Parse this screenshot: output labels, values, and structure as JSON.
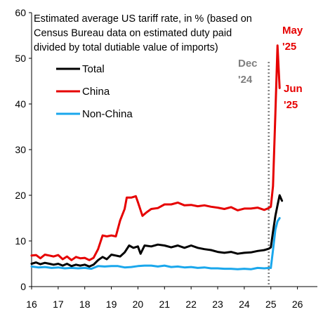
{
  "chart_data": {
    "type": "line",
    "title_lines": [
      "Estimated average US tariff rate, in % (based on",
      "Census Bureau data on estimated duty paid",
      "divided by total dutiable value of imports)"
    ],
    "xlabel": "",
    "ylabel": "",
    "xlim": [
      2016,
      2026.75
    ],
    "ylim": [
      0,
      60
    ],
    "x_ticks": [
      16,
      17,
      18,
      19,
      20,
      21,
      22,
      23,
      24,
      25,
      26
    ],
    "y_ticks": [
      0,
      10,
      20,
      30,
      40,
      50,
      60
    ],
    "grid": false,
    "legend_position": "top-left",
    "series": [
      {
        "name": "Total",
        "color": "#000000",
        "points": [
          [
            2016.0,
            5.0
          ],
          [
            2016.17,
            5.3
          ],
          [
            2016.33,
            4.9
          ],
          [
            2016.5,
            5.2
          ],
          [
            2016.67,
            5.0
          ],
          [
            2016.83,
            4.8
          ],
          [
            2017.0,
            5.0
          ],
          [
            2017.17,
            4.6
          ],
          [
            2017.33,
            5.0
          ],
          [
            2017.5,
            4.5
          ],
          [
            2017.67,
            4.8
          ],
          [
            2017.83,
            4.6
          ],
          [
            2018.0,
            4.8
          ],
          [
            2018.17,
            4.4
          ],
          [
            2018.33,
            4.8
          ],
          [
            2018.5,
            5.8
          ],
          [
            2018.67,
            6.5
          ],
          [
            2018.83,
            6.0
          ],
          [
            2019.0,
            7.0
          ],
          [
            2019.17,
            6.8
          ],
          [
            2019.33,
            6.6
          ],
          [
            2019.5,
            7.5
          ],
          [
            2019.67,
            9.0
          ],
          [
            2019.83,
            8.5
          ],
          [
            2020.0,
            8.8
          ],
          [
            2020.1,
            7.2
          ],
          [
            2020.25,
            9.0
          ],
          [
            2020.5,
            8.8
          ],
          [
            2020.75,
            9.2
          ],
          [
            2021.0,
            9.0
          ],
          [
            2021.25,
            8.6
          ],
          [
            2021.5,
            9.0
          ],
          [
            2021.75,
            8.5
          ],
          [
            2022.0,
            9.0
          ],
          [
            2022.25,
            8.5
          ],
          [
            2022.5,
            8.2
          ],
          [
            2022.75,
            8.0
          ],
          [
            2023.0,
            7.6
          ],
          [
            2023.25,
            7.4
          ],
          [
            2023.5,
            7.6
          ],
          [
            2023.75,
            7.2
          ],
          [
            2024.0,
            7.4
          ],
          [
            2024.25,
            7.5
          ],
          [
            2024.5,
            7.8
          ],
          [
            2024.75,
            8.0
          ],
          [
            2024.92,
            8.3
          ],
          [
            2025.0,
            8.6
          ],
          [
            2025.08,
            12.0
          ],
          [
            2025.17,
            15.5
          ],
          [
            2025.25,
            17.8
          ],
          [
            2025.33,
            20.0
          ],
          [
            2025.42,
            18.8
          ]
        ]
      },
      {
        "name": "China",
        "color": "#e60000",
        "points": [
          [
            2016.0,
            6.8
          ],
          [
            2016.17,
            6.9
          ],
          [
            2016.33,
            6.2
          ],
          [
            2016.5,
            7.0
          ],
          [
            2016.67,
            6.8
          ],
          [
            2016.83,
            6.6
          ],
          [
            2017.0,
            6.9
          ],
          [
            2017.17,
            6.0
          ],
          [
            2017.33,
            6.6
          ],
          [
            2017.5,
            5.8
          ],
          [
            2017.67,
            6.5
          ],
          [
            2017.83,
            6.2
          ],
          [
            2018.0,
            6.3
          ],
          [
            2018.17,
            5.8
          ],
          [
            2018.33,
            6.3
          ],
          [
            2018.5,
            8.2
          ],
          [
            2018.67,
            11.2
          ],
          [
            2018.83,
            11.0
          ],
          [
            2019.0,
            11.2
          ],
          [
            2019.17,
            11.0
          ],
          [
            2019.33,
            14.5
          ],
          [
            2019.5,
            17.0
          ],
          [
            2019.58,
            19.5
          ],
          [
            2019.75,
            19.5
          ],
          [
            2019.92,
            19.8
          ],
          [
            2020.0,
            18.5
          ],
          [
            2020.17,
            15.5
          ],
          [
            2020.33,
            16.3
          ],
          [
            2020.5,
            17.0
          ],
          [
            2020.75,
            17.2
          ],
          [
            2021.0,
            18.0
          ],
          [
            2021.25,
            18.0
          ],
          [
            2021.5,
            18.4
          ],
          [
            2021.75,
            17.8
          ],
          [
            2022.0,
            17.9
          ],
          [
            2022.25,
            17.6
          ],
          [
            2022.5,
            17.8
          ],
          [
            2022.75,
            17.5
          ],
          [
            2023.0,
            17.3
          ],
          [
            2023.25,
            17.0
          ],
          [
            2023.5,
            17.4
          ],
          [
            2023.75,
            16.7
          ],
          [
            2024.0,
            17.1
          ],
          [
            2024.25,
            17.1
          ],
          [
            2024.5,
            17.3
          ],
          [
            2024.75,
            16.8
          ],
          [
            2024.92,
            17.2
          ],
          [
            2025.0,
            17.5
          ],
          [
            2025.08,
            22.0
          ],
          [
            2025.17,
            38.0
          ],
          [
            2025.25,
            52.8
          ],
          [
            2025.33,
            43.5
          ]
        ]
      },
      {
        "name": "Non-China",
        "color": "#1aa7ec",
        "points": [
          [
            2016.0,
            4.4
          ],
          [
            2016.25,
            4.2
          ],
          [
            2016.5,
            4.3
          ],
          [
            2016.75,
            4.1
          ],
          [
            2017.0,
            4.2
          ],
          [
            2017.25,
            4.0
          ],
          [
            2017.5,
            4.1
          ],
          [
            2017.75,
            4.0
          ],
          [
            2018.0,
            4.1
          ],
          [
            2018.25,
            3.9
          ],
          [
            2018.5,
            4.5
          ],
          [
            2018.75,
            4.4
          ],
          [
            2019.0,
            4.5
          ],
          [
            2019.25,
            4.5
          ],
          [
            2019.5,
            4.2
          ],
          [
            2019.75,
            4.3
          ],
          [
            2020.0,
            4.5
          ],
          [
            2020.25,
            4.6
          ],
          [
            2020.5,
            4.6
          ],
          [
            2020.75,
            4.4
          ],
          [
            2021.0,
            4.6
          ],
          [
            2021.25,
            4.3
          ],
          [
            2021.5,
            4.4
          ],
          [
            2021.75,
            4.2
          ],
          [
            2022.0,
            4.3
          ],
          [
            2022.25,
            4.1
          ],
          [
            2022.5,
            4.2
          ],
          [
            2022.75,
            4.0
          ],
          [
            2023.0,
            4.0
          ],
          [
            2023.25,
            3.9
          ],
          [
            2023.5,
            3.9
          ],
          [
            2023.75,
            3.8
          ],
          [
            2024.0,
            3.9
          ],
          [
            2024.25,
            3.8
          ],
          [
            2024.5,
            4.1
          ],
          [
            2024.75,
            4.0
          ],
          [
            2024.92,
            4.1
          ],
          [
            2025.0,
            4.1
          ],
          [
            2025.08,
            8.0
          ],
          [
            2025.17,
            12.5
          ],
          [
            2025.25,
            14.3
          ],
          [
            2025.33,
            15.0
          ]
        ]
      }
    ],
    "reference_line": {
      "x": 2024.92,
      "style": "dotted",
      "color": "#7f7f7f",
      "label_lines": [
        "Dec",
        "'24"
      ]
    },
    "annotations": [
      {
        "text_lines": [
          "May",
          "'25"
        ],
        "color": "#e60000"
      },
      {
        "text_lines": [
          "Jun",
          "'25"
        ],
        "color": "#e60000"
      }
    ]
  }
}
